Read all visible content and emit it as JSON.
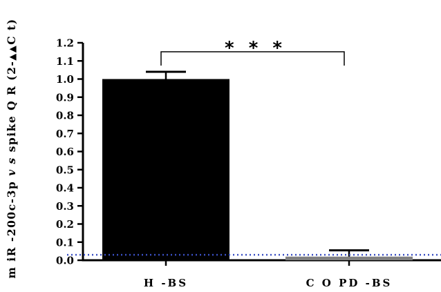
{
  "chart_data": {
    "type": "bar",
    "categories": [
      "H -BS",
      "C O PD -BS"
    ],
    "values": [
      1.0,
      0.02
    ],
    "errors": [
      0.04,
      0.035
    ],
    "bar_colors": [
      "#000000",
      "#808080"
    ],
    "ylim": [
      0,
      1.2
    ],
    "yticks": [
      "0.0",
      "0.1",
      "0.2",
      "0.3",
      "0.4",
      "0.5",
      "0.6",
      "0.7",
      "0.8",
      "0.9",
      "1.0",
      "1.1",
      "1.2"
    ],
    "ylabel_parts": {
      "before": "m iR -200c-3p ",
      "italic": "v s",
      "after": " spike Q R (2-",
      "delta_symbol": "▲▲",
      "end": "C t)"
    },
    "reference_line": {
      "value": 0.03,
      "style": "dotted",
      "color": "#3a4fc2"
    },
    "significance": {
      "label": "* * *",
      "between": [
        0,
        1
      ]
    },
    "grid": false,
    "legend": "none"
  }
}
